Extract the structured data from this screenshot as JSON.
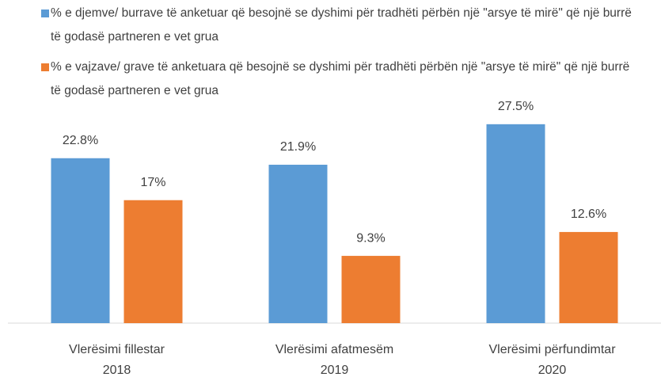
{
  "chart_data": {
    "type": "bar",
    "categories": [
      [
        "Vlerësimi fillestar",
        "2018"
      ],
      [
        "Vlerësimi afatmesëm",
        "2019"
      ],
      [
        "Vlerësimi përfundimtar",
        "2020"
      ]
    ],
    "series": [
      {
        "name": "% e djemve/ burrave të anketuar që besojnë se dyshimi për tradhëti përbën një \"arsye të mirë\" që një burrë të godasë partneren e vet grua",
        "color": "#5b9bd5",
        "values": [
          22.8,
          21.9,
          27.5
        ],
        "value_labels": [
          "22.8%",
          "21.9%",
          "27.5%"
        ]
      },
      {
        "name": "% e vajzave/ grave të anketuara që besojnë se dyshimi për tradhëti përbën një \"arsye të mirë\" që një burrë të godasë partneren e vet grua",
        "color": "#ed7d31",
        "values": [
          17,
          9.3,
          12.6
        ],
        "value_labels": [
          "17%",
          "9.3%",
          "12.6%"
        ]
      }
    ],
    "ylim": [
      0,
      30
    ],
    "legend": "top"
  }
}
